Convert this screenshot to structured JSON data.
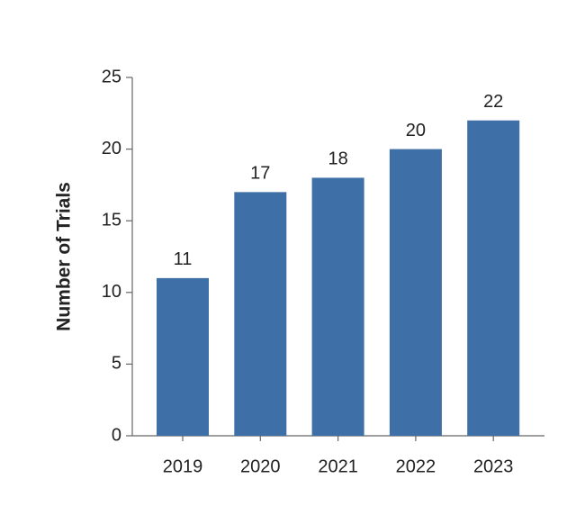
{
  "chart_data": {
    "type": "bar",
    "y_label": "Number of Trials",
    "categories": [
      "2019",
      "2020",
      "2021",
      "2022",
      "2023"
    ],
    "values": [
      11,
      17,
      18,
      20,
      22
    ],
    "color": "#3e6fa7",
    "ylim": [
      0,
      25
    ],
    "yticks": [
      0,
      5,
      10,
      15,
      20,
      25
    ],
    "grid": false
  }
}
